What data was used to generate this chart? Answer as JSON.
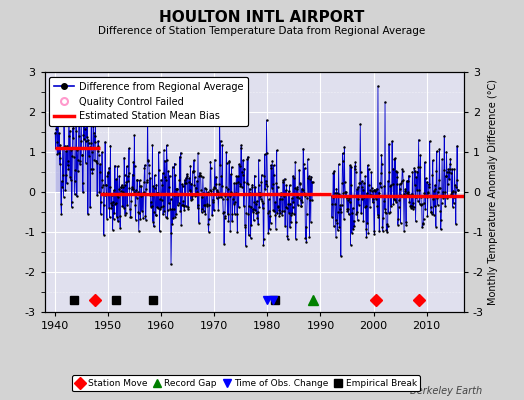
{
  "title": "HOULTON INTL AIRPORT",
  "subtitle": "Difference of Station Temperature Data from Regional Average",
  "ylabel": "Monthly Temperature Anomaly Difference (°C)",
  "xlabel_years": [
    1940,
    1950,
    1960,
    1970,
    1980,
    1990,
    2000,
    2010
  ],
  "ylim": [
    -3,
    3
  ],
  "xlim": [
    1938,
    2017
  ],
  "background_color": "#d3d3d3",
  "plot_bg_color": "#e0e0ee",
  "grid_color": "#ffffff",
  "line_color": "#0000cc",
  "line_fill_color": "#8888dd",
  "dot_color": "#000000",
  "bias_color": "#ff0000",
  "qc_color": "#ff99cc",
  "watermark": "Berkeley Earth",
  "segment_biases": [
    {
      "start": 1940.0,
      "end": 1948.5,
      "bias": 1.1
    },
    {
      "start": 1948.5,
      "end": 1992.0,
      "bias": -0.05
    },
    {
      "start": 1992.0,
      "end": 2017.0,
      "bias": -0.1
    }
  ],
  "station_moves": [
    1947.5,
    2000.5,
    2008.5
  ],
  "empirical_breaks": [
    1943.5,
    1951.5,
    1958.5,
    1981.5
  ],
  "record_gaps": [
    1988.5
  ],
  "obs_time_changes": [
    1980.0,
    1981.0
  ],
  "qc_failed_x": 1944.5,
  "qc_failed_y": 2.05
}
